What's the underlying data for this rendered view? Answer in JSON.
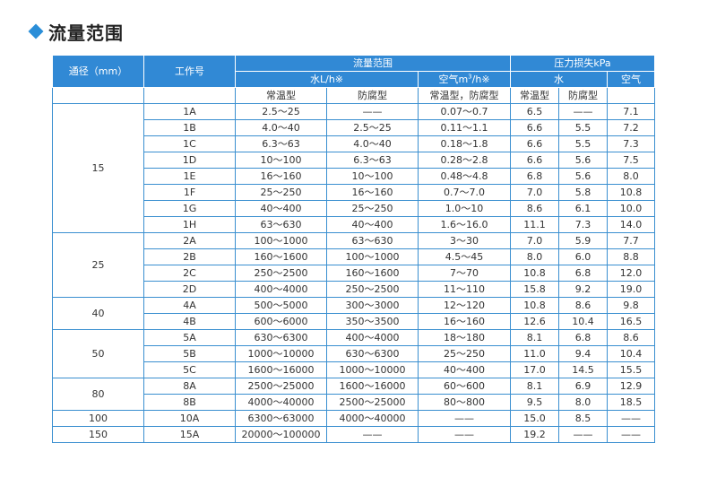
{
  "title": "流量范围",
  "headers": {
    "diameter": "通径（mm）",
    "work_no": "工作号",
    "flow_range": "流量范围",
    "water_flow": "水L/h※",
    "air_flow_pre": "空气m",
    "air_flow_sup": "3",
    "air_flow_post": "/h※",
    "pressure_loss": "压力损失kPa",
    "water": "水",
    "air": "空气",
    "normal": "常温型",
    "anticorrosion": "防腐型",
    "normal_anticorrosion": "常温型，防腐型"
  },
  "groups": [
    {
      "diameter": "15",
      "rows": [
        [
          "1A",
          "2.5～25",
          "——",
          "0.07～0.7",
          "6.5",
          "——",
          "7.1"
        ],
        [
          "1B",
          "4.0～40",
          "2.5～25",
          "0.11～1.1",
          "6.6",
          "5.5",
          "7.2"
        ],
        [
          "1C",
          "6.3～63",
          "4.0～40",
          "0.18～1.8",
          "6.6",
          "5.5",
          "7.3"
        ],
        [
          "1D",
          "10～100",
          "6.3～63",
          "0.28～2.8",
          "6.6",
          "5.6",
          "7.5"
        ],
        [
          "1E",
          "16～160",
          "10～100",
          "0.48～4.8",
          "6.8",
          "5.6",
          "8.0"
        ],
        [
          "1F",
          "25～250",
          "16～160",
          "0.7～7.0",
          "7.0",
          "5.8",
          "10.8"
        ],
        [
          "1G",
          "40～400",
          "25～250",
          "1.0～10",
          "8.6",
          "6.1",
          "10.0"
        ],
        [
          "1H",
          "63～630",
          "40～400",
          "1.6～16.0",
          "11.1",
          "7.3",
          "14.0"
        ]
      ]
    },
    {
      "diameter": "25",
      "rows": [
        [
          "2A",
          "100～1000",
          "63～630",
          "3～30",
          "7.0",
          "5.9",
          "7.7"
        ],
        [
          "2B",
          "160～1600",
          "100～1000",
          "4.5～45",
          "8.0",
          "6.0",
          "8.8"
        ],
        [
          "2C",
          "250～2500",
          "160～1600",
          "7～70",
          "10.8",
          "6.8",
          "12.0"
        ],
        [
          "2D",
          "400～4000",
          "250～2500",
          "11～110",
          "15.8",
          "9.2",
          "19.0"
        ]
      ]
    },
    {
      "diameter": "40",
      "rows": [
        [
          "4A",
          "500～5000",
          "300～3000",
          "12～120",
          "10.8",
          "8.6",
          "9.8"
        ],
        [
          "4B",
          "600～6000",
          "350～3500",
          "16～160",
          "12.6",
          "10.4",
          "16.5"
        ]
      ]
    },
    {
      "diameter": "50",
      "rows": [
        [
          "5A",
          "630～6300",
          "400～4000",
          "18～180",
          "8.1",
          "6.8",
          "8.6"
        ],
        [
          "5B",
          "1000～10000",
          "630～6300",
          "25～250",
          "11.0",
          "9.4",
          "10.4"
        ],
        [
          "5C",
          "1600～16000",
          "1000～10000",
          "40～400",
          "17.0",
          "14.5",
          "15.5"
        ]
      ]
    },
    {
      "diameter": "80",
      "rows": [
        [
          "8A",
          "2500～25000",
          "1600～16000",
          "60～600",
          "8.1",
          "6.9",
          "12.9"
        ],
        [
          "8B",
          "4000～40000",
          "2500～25000",
          "80～800",
          "9.5",
          "8.0",
          "18.5"
        ]
      ]
    },
    {
      "diameter": "100",
      "rows": [
        [
          "10A",
          "6300～63000",
          "4000～40000",
          "——",
          "15.0",
          "8.5",
          "——"
        ]
      ]
    },
    {
      "diameter": "150",
      "rows": [
        [
          "15A",
          "20000～100000",
          "——",
          "——",
          "19.2",
          "——",
          "——"
        ]
      ]
    }
  ]
}
